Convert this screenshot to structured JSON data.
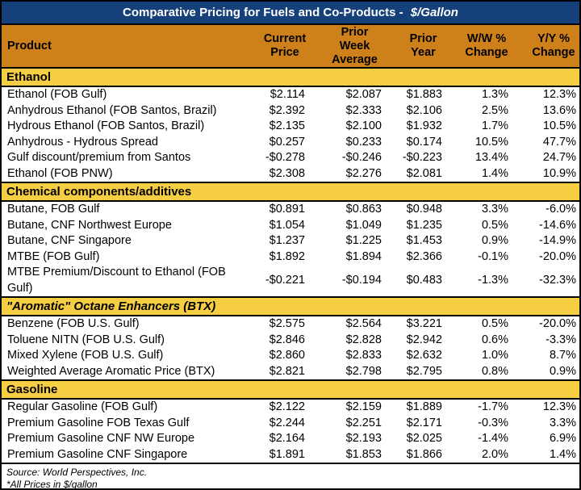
{
  "header": {
    "title": "Comparative Pricing for Fuels and Co-Products -",
    "unit": "$/Gallon",
    "columns_display": [
      "Product",
      "Current\nPrice",
      "Prior\nWeek\nAverage",
      "Prior\nYear",
      "W/W %\nChange",
      "Y/Y %\nChange"
    ]
  },
  "chart_data": {
    "type": "table",
    "title": "Comparative Pricing for Fuels and Co-Products - $/Gallon",
    "columns": [
      "Product",
      "Current Price",
      "Prior Week Average",
      "Prior Year",
      "W/W % Change",
      "Y/Y % Change"
    ],
    "sections": [
      {
        "label": "Ethanol",
        "italic": false,
        "rows": [
          [
            "Ethanol (FOB Gulf)",
            "$2.114",
            "$2.087",
            "$1.883",
            "1.3%",
            "12.3%"
          ],
          [
            "Anhydrous Ethanol (FOB Santos, Brazil)",
            "$2.392",
            "$2.333",
            "$2.106",
            "2.5%",
            "13.6%"
          ],
          [
            "Hydrous Ethanol (FOB Santos, Brazil)",
            "$2.135",
            "$2.100",
            "$1.932",
            "1.7%",
            "10.5%"
          ],
          [
            "Anhydrous - Hydrous Spread",
            "$0.257",
            "$0.233",
            "$0.174",
            "10.5%",
            "47.7%"
          ],
          [
            "Gulf discount/premium from Santos",
            "-$0.278",
            "-$0.246",
            "-$0.223",
            "13.4%",
            "24.7%"
          ],
          [
            "Ethanol (FOB PNW)",
            "$2.308",
            "$2.276",
            "$2.081",
            "1.4%",
            "10.9%"
          ]
        ]
      },
      {
        "label": "Chemical components/additives",
        "italic": false,
        "rows": [
          [
            "Butane, FOB Gulf",
            "$0.891",
            "$0.863",
            "$0.948",
            "3.3%",
            "-6.0%"
          ],
          [
            "Butane, CNF Northwest Europe",
            "$1.054",
            "$1.049",
            "$1.235",
            "0.5%",
            "-14.6%"
          ],
          [
            "Butane, CNF Singapore",
            "$1.237",
            "$1.225",
            "$1.453",
            "0.9%",
            "-14.9%"
          ],
          [
            "MTBE (FOB Gulf)",
            "$1.892",
            "$1.894",
            "$2.366",
            "-0.1%",
            "-20.0%"
          ],
          [
            "MTBE Premium/Discount to Ethanol (FOB Gulf)",
            "-$0.221",
            "-$0.194",
            "$0.483",
            "-1.3%",
            "-32.3%"
          ]
        ]
      },
      {
        "label": "\"Aromatic\" Octane Enhancers (BTX)",
        "italic": true,
        "rows": [
          [
            "Benzene (FOB U.S. Gulf)",
            "$2.575",
            "$2.564",
            "$3.221",
            "0.5%",
            "-20.0%"
          ],
          [
            "Toluene NITN (FOB U.S. Gulf)",
            "$2.846",
            "$2.828",
            "$2.942",
            "0.6%",
            "-3.3%"
          ],
          [
            "Mixed Xylene (FOB U.S. Gulf)",
            "$2.860",
            "$2.833",
            "$2.632",
            "1.0%",
            "8.7%"
          ],
          [
            "Weighted Average Aromatic Price (BTX)",
            "$2.821",
            "$2.798",
            "$2.795",
            "0.8%",
            "0.9%"
          ]
        ]
      },
      {
        "label": "Gasoline",
        "italic": false,
        "rows": [
          [
            "Regular Gasoline (FOB Gulf)",
            "$2.122",
            "$2.159",
            "$1.889",
            "-1.7%",
            "12.3%"
          ],
          [
            "Premium Gasoline FOB Texas Gulf",
            "$2.244",
            "$2.251",
            "$2.171",
            "-0.3%",
            "3.3%"
          ],
          [
            "Premium Gasoline CNF NW Europe",
            "$2.164",
            "$2.193",
            "$2.025",
            "-1.4%",
            "6.9%"
          ],
          [
            "Premium Gasoline CNF Singapore",
            "$1.891",
            "$1.853",
            "$1.866",
            "2.0%",
            "1.4%"
          ]
        ]
      }
    ]
  },
  "footnotes": {
    "source": "Source: World Perspectives, Inc.",
    "unit": "*All Prices in $/gallon"
  },
  "colors": {
    "title_bar": "#164079",
    "title_text": "#FFFFFF",
    "column_header": "#CE811B",
    "section_bar": "#F6CE44",
    "border": "#000000",
    "body_text": "#000000"
  }
}
